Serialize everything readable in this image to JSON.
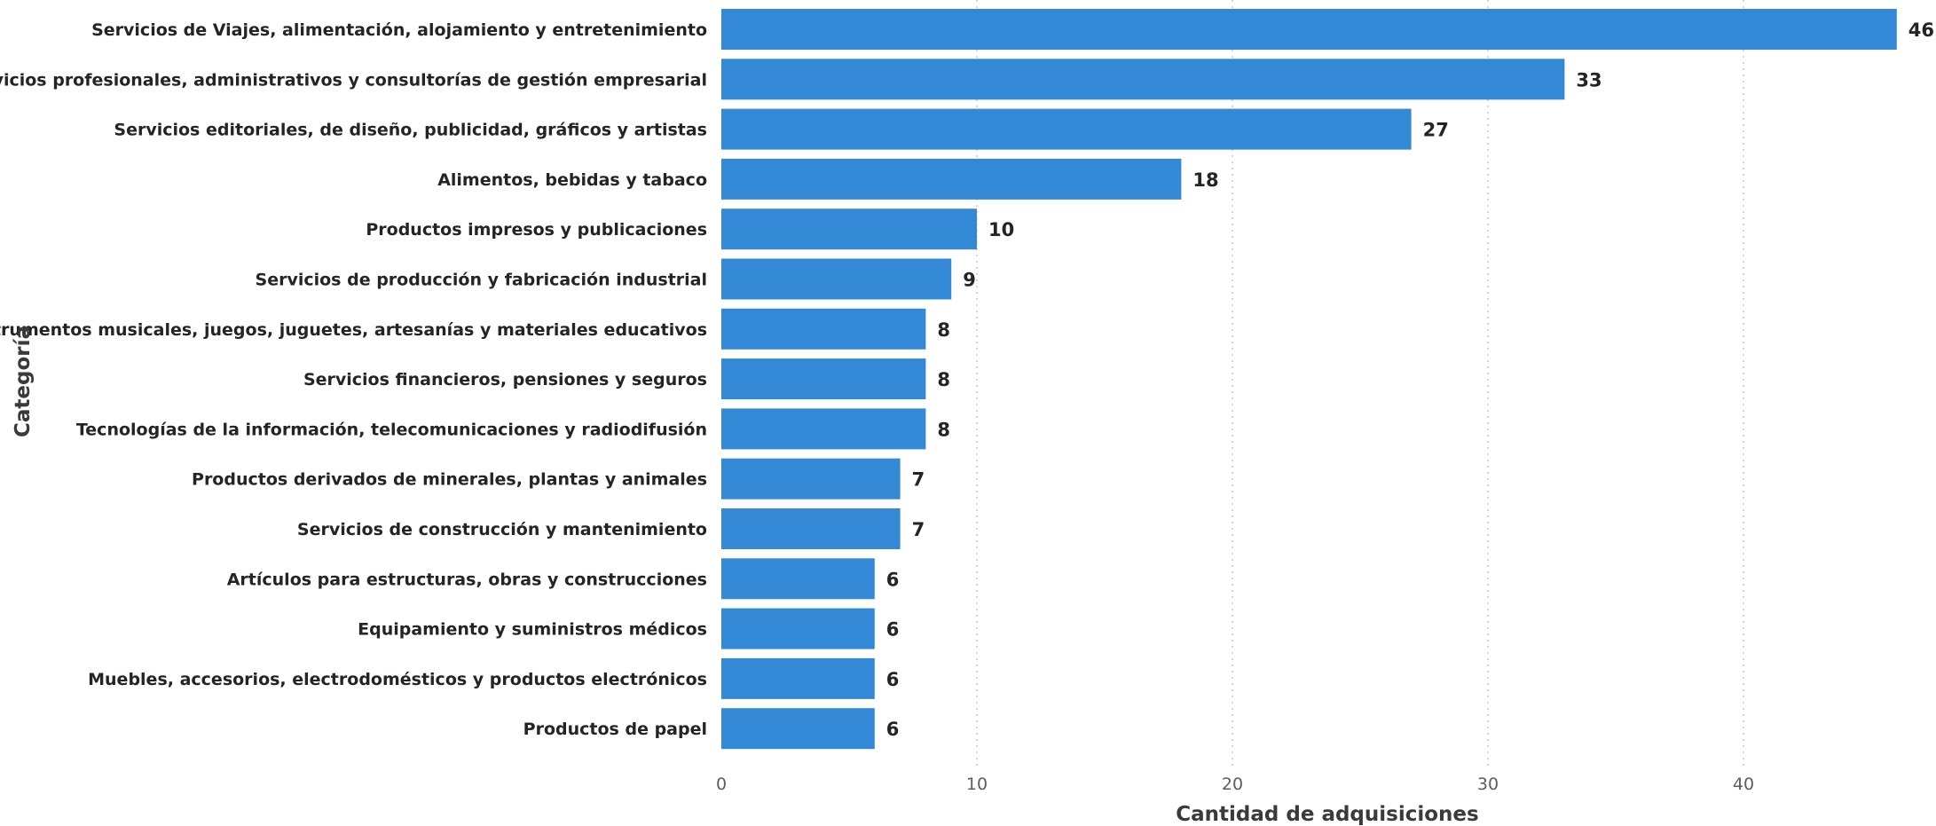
{
  "chart_data": {
    "type": "bar",
    "orientation": "horizontal",
    "title": "",
    "xlabel": "Cantidad de adquisiciones",
    "ylabel": "Categoría",
    "xlim": [
      0,
      46
    ],
    "xticks": [
      0,
      10,
      20,
      30,
      40
    ],
    "grid": true,
    "bar_color": "#3489d6",
    "categories": [
      "Servicios de Viajes, alimentación, alojamiento y entretenimiento",
      "Servicios profesionales, administrativos y consultorías de gestión empresarial",
      "Servicios editoriales, de diseño, publicidad, gráficos y artistas",
      "Alimentos, bebidas y tabaco",
      "Productos impresos y publicaciones",
      "Servicios de producción y fabricación industrial",
      "Instrumentos musicales, juegos, juguetes, artesanías y materiales educativos",
      "Servicios financieros, pensiones y seguros",
      "Tecnologías de la información, telecomunicaciones y radiodifusión",
      "Productos derivados de minerales, plantas y animales",
      "Servicios de construcción y mantenimiento",
      "Artículos para estructuras, obras y construcciones",
      "Equipamiento y suministros médicos",
      "Muebles, accesorios, electrodomésticos y productos electrónicos",
      "Productos de papel"
    ],
    "values": [
      46,
      33,
      27,
      18,
      10,
      9,
      8,
      8,
      8,
      7,
      7,
      6,
      6,
      6,
      6
    ]
  }
}
